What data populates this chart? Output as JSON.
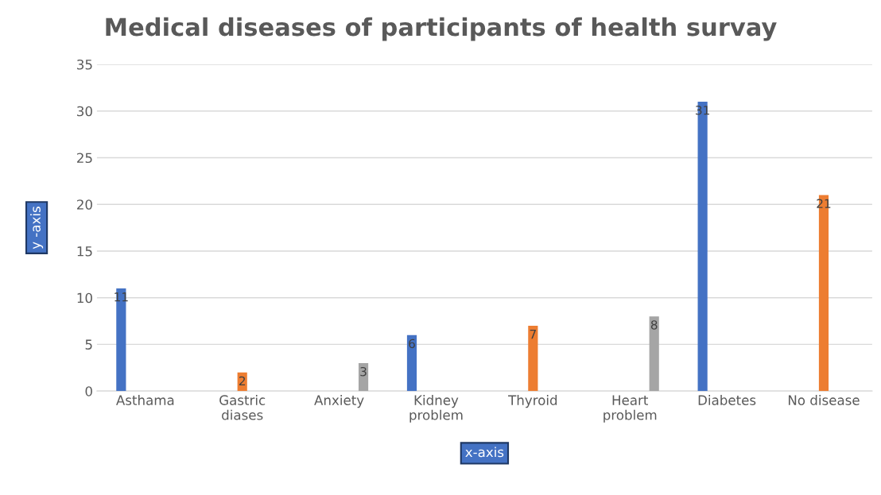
{
  "chart_data": {
    "type": "bar",
    "title": "Medical diseases of participants of health survay",
    "xlabel": "x-axis",
    "ylabel": "y -axis",
    "categories": [
      "Asthama",
      "Gastric\ndiases",
      "Anxiety",
      "Kidney\nproblem",
      "Thyroid",
      "Heart\nproblem",
      "Diabetes",
      "No disease"
    ],
    "series": [
      {
        "color": "#4472c4",
        "values": [
          11,
          null,
          null,
          6,
          null,
          null,
          31,
          null
        ]
      },
      {
        "color": "#ed7d31",
        "values": [
          null,
          2,
          null,
          null,
          7,
          null,
          null,
          21
        ]
      },
      {
        "color": "#a5a5a5",
        "values": [
          null,
          null,
          3,
          null,
          null,
          8,
          null,
          null
        ]
      }
    ],
    "ylim": [
      0,
      35
    ],
    "yticks": [
      0,
      5,
      10,
      15,
      20,
      25,
      30,
      35
    ],
    "grid": "y",
    "data_labels": true
  }
}
